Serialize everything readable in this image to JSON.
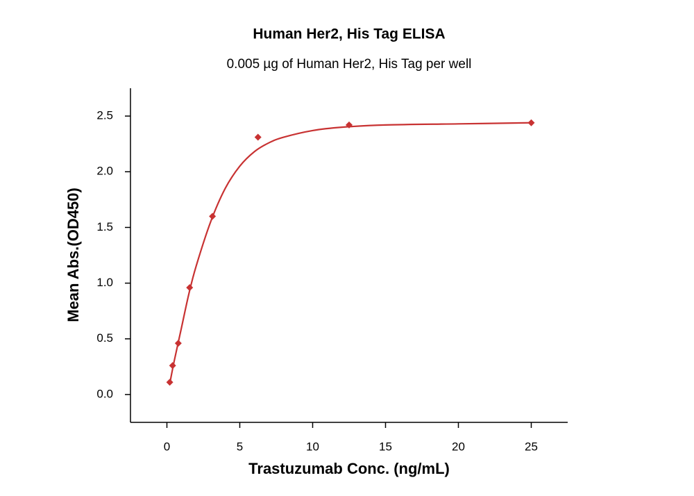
{
  "chart_data": {
    "type": "scatter",
    "title": "Human Her2, His Tag ELISA",
    "subtitle": "0.005 µg of Human Her2, His Tag per well",
    "x_label": "Trastuzumab Conc. (ng/mL)",
    "y_label": "Mean Abs.(OD450)",
    "series": [
      {
        "color": "#c83232",
        "x": [
          0.195,
          0.39,
          0.78,
          1.56,
          3.125,
          6.25,
          12.5,
          25
        ],
        "values": [
          0.11,
          0.26,
          0.46,
          0.96,
          1.6,
          2.31,
          2.42,
          2.44
        ]
      }
    ],
    "fit": {
      "color": "#c83232",
      "x": [
        0.2,
        0.5,
        1,
        1.5,
        2,
        3,
        4,
        5,
        6,
        7,
        8,
        10,
        12,
        15,
        20,
        25
      ],
      "values": [
        0.1,
        0.3,
        0.6,
        0.9,
        1.15,
        1.55,
        1.85,
        2.05,
        2.18,
        2.26,
        2.31,
        2.37,
        2.4,
        2.42,
        2.43,
        2.44
      ]
    },
    "xlim": [
      -2.5,
      27.5
    ],
    "xticks": [
      0,
      5,
      10,
      15,
      20,
      25
    ],
    "ylim": [
      -0.25,
      2.75
    ],
    "yticks": [
      {
        "value": 0,
        "label": "0.0"
      },
      0.5,
      {
        "value": 1,
        "label": "1.0"
      },
      1.5,
      {
        "value": 2,
        "label": "2.0"
      },
      2.5
    ]
  }
}
